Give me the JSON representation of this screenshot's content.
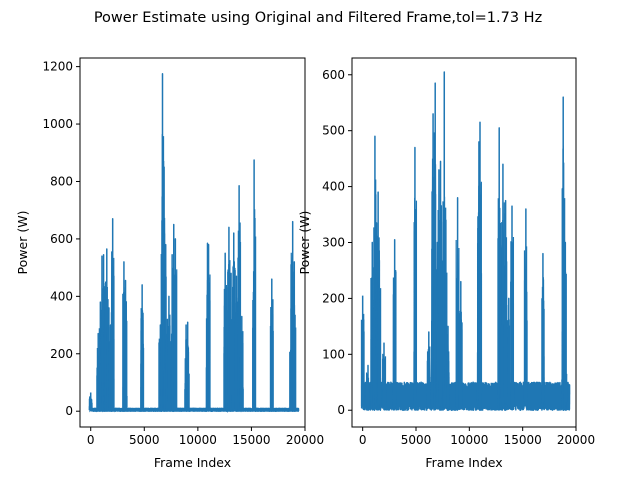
{
  "figure": {
    "suptitle": "Power Estimate using Original and Filtered Frame,tol=1.73 Hz"
  },
  "chart_data": [
    {
      "type": "line",
      "title": "",
      "xlabel": "Frame Index",
      "ylabel": "Power (W)",
      "xlim": [
        -1000,
        20000
      ],
      "ylim": [
        -55,
        1230
      ],
      "xticks": [
        0,
        5000,
        10000,
        15000,
        20000
      ],
      "yticks": [
        0,
        200,
        400,
        600,
        800,
        1000,
        1200
      ],
      "grid": false,
      "series": [
        {
          "color": "#1f77b4",
          "baseline_range": [
            0,
            10
          ],
          "peaks": [
            [
              0,
              65
            ],
            [
              700,
              270
            ],
            [
              900,
              380
            ],
            [
              1050,
              540
            ],
            [
              1200,
              545
            ],
            [
              1350,
              430
            ],
            [
              1500,
              565
            ],
            [
              1700,
              360
            ],
            [
              1850,
              300
            ],
            [
              2050,
              670
            ],
            [
              3100,
              520
            ],
            [
              3250,
              455
            ],
            [
              4800,
              440
            ],
            [
              6500,
              300
            ],
            [
              6700,
              1175
            ],
            [
              6850,
              850
            ],
            [
              7000,
              580
            ],
            [
              7150,
              320
            ],
            [
              7300,
              400
            ],
            [
              7600,
              545
            ],
            [
              7750,
              650
            ],
            [
              7900,
              600
            ],
            [
              8900,
              300
            ],
            [
              9050,
              310
            ],
            [
              10900,
              585
            ],
            [
              11000,
              580
            ],
            [
              12550,
              550
            ],
            [
              12800,
              350
            ],
            [
              12900,
              640
            ],
            [
              13100,
              480
            ],
            [
              13350,
              620
            ],
            [
              13600,
              470
            ],
            [
              13850,
              785
            ],
            [
              14100,
              330
            ],
            [
              15250,
              875
            ],
            [
              16900,
              460
            ],
            [
              18700,
              510
            ],
            [
              18850,
              660
            ],
            [
              19000,
              520
            ]
          ]
        }
      ]
    },
    {
      "type": "line",
      "title": "",
      "xlabel": "Frame Index",
      "ylabel": "Power (W)",
      "xlim": [
        -1000,
        20000
      ],
      "ylim": [
        -30,
        630
      ],
      "xticks": [
        0,
        5000,
        10000,
        15000,
        20000
      ],
      "yticks": [
        0,
        100,
        200,
        300,
        400,
        500,
        600
      ],
      "grid": false,
      "series": [
        {
          "color": "#1f77b4",
          "baseline_range": [
            0,
            50
          ],
          "peaks": [
            [
              0,
              205
            ],
            [
              500,
              80
            ],
            [
              900,
              300
            ],
            [
              1150,
              490
            ],
            [
              1300,
              335
            ],
            [
              1450,
              390
            ],
            [
              1550,
              285
            ],
            [
              2000,
              120
            ],
            [
              3000,
              305
            ],
            [
              4900,
              470
            ],
            [
              6200,
              140
            ],
            [
              6600,
              530
            ],
            [
              6800,
              585
            ],
            [
              7000,
              300
            ],
            [
              7150,
              430
            ],
            [
              7300,
              445
            ],
            [
              7650,
              605
            ],
            [
              7800,
              340
            ],
            [
              8000,
              150
            ],
            [
              8900,
              380
            ],
            [
              9200,
              230
            ],
            [
              10900,
              480
            ],
            [
              11000,
              515
            ],
            [
              12800,
              505
            ],
            [
              13000,
              290
            ],
            [
              13150,
              440
            ],
            [
              13400,
              375
            ],
            [
              13700,
              200
            ],
            [
              14000,
              365
            ],
            [
              15300,
              360
            ],
            [
              16900,
              280
            ],
            [
              18800,
              560
            ],
            [
              19000,
              300
            ]
          ]
        }
      ]
    }
  ]
}
